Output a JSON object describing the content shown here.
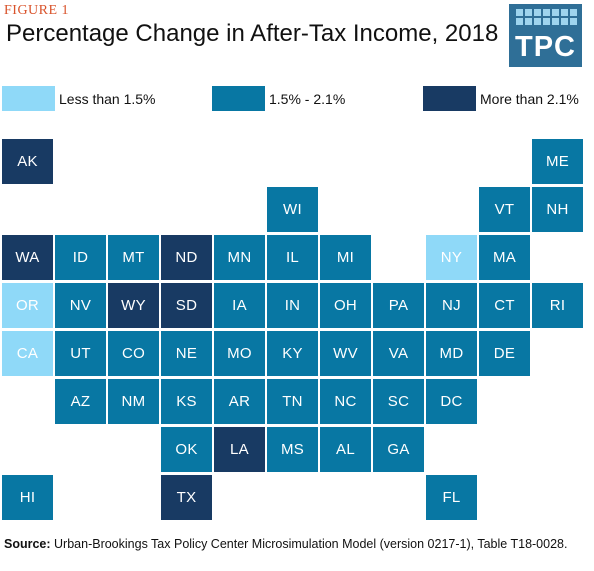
{
  "figure_label": "FIGURE 1",
  "title": "Percentage Change in After-Tax Income, 2018",
  "logo_text": "TPC",
  "colors": {
    "low": "#8fd9f8",
    "mid": "#0877a3",
    "high": "#183a63"
  },
  "legend": [
    {
      "label": "Less than 1.5%",
      "category": "low"
    },
    {
      "label": "1.5% - 2.1%",
      "category": "mid"
    },
    {
      "label": "More than 2.1%",
      "category": "high"
    }
  ],
  "states": [
    {
      "abbr": "AK",
      "category": "high"
    },
    {
      "abbr": "ME",
      "category": "mid"
    },
    {
      "abbr": "WI",
      "category": "mid"
    },
    {
      "abbr": "VT",
      "category": "mid"
    },
    {
      "abbr": "NH",
      "category": "mid"
    },
    {
      "abbr": "WA",
      "category": "high"
    },
    {
      "abbr": "ID",
      "category": "mid"
    },
    {
      "abbr": "MT",
      "category": "mid"
    },
    {
      "abbr": "ND",
      "category": "high"
    },
    {
      "abbr": "MN",
      "category": "mid"
    },
    {
      "abbr": "IL",
      "category": "mid"
    },
    {
      "abbr": "MI",
      "category": "mid"
    },
    {
      "abbr": "NY",
      "category": "low"
    },
    {
      "abbr": "MA",
      "category": "mid"
    },
    {
      "abbr": "OR",
      "category": "low"
    },
    {
      "abbr": "NV",
      "category": "mid"
    },
    {
      "abbr": "WY",
      "category": "high"
    },
    {
      "abbr": "SD",
      "category": "high"
    },
    {
      "abbr": "IA",
      "category": "mid"
    },
    {
      "abbr": "IN",
      "category": "mid"
    },
    {
      "abbr": "OH",
      "category": "mid"
    },
    {
      "abbr": "PA",
      "category": "mid"
    },
    {
      "abbr": "NJ",
      "category": "mid"
    },
    {
      "abbr": "CT",
      "category": "mid"
    },
    {
      "abbr": "RI",
      "category": "mid"
    },
    {
      "abbr": "CA",
      "category": "low"
    },
    {
      "abbr": "UT",
      "category": "mid"
    },
    {
      "abbr": "CO",
      "category": "mid"
    },
    {
      "abbr": "NE",
      "category": "mid"
    },
    {
      "abbr": "MO",
      "category": "mid"
    },
    {
      "abbr": "KY",
      "category": "mid"
    },
    {
      "abbr": "WV",
      "category": "mid"
    },
    {
      "abbr": "VA",
      "category": "mid"
    },
    {
      "abbr": "MD",
      "category": "mid"
    },
    {
      "abbr": "DE",
      "category": "mid"
    },
    {
      "abbr": "AZ",
      "category": "mid"
    },
    {
      "abbr": "NM",
      "category": "mid"
    },
    {
      "abbr": "KS",
      "category": "mid"
    },
    {
      "abbr": "AR",
      "category": "mid"
    },
    {
      "abbr": "TN",
      "category": "mid"
    },
    {
      "abbr": "NC",
      "category": "mid"
    },
    {
      "abbr": "SC",
      "category": "mid"
    },
    {
      "abbr": "DC",
      "category": "mid"
    },
    {
      "abbr": "OK",
      "category": "mid"
    },
    {
      "abbr": "LA",
      "category": "high"
    },
    {
      "abbr": "MS",
      "category": "mid"
    },
    {
      "abbr": "AL",
      "category": "mid"
    },
    {
      "abbr": "GA",
      "category": "mid"
    },
    {
      "abbr": "HI",
      "category": "mid"
    },
    {
      "abbr": "TX",
      "category": "high"
    },
    {
      "abbr": "FL",
      "category": "mid"
    }
  ],
  "source_label": "Source:",
  "source_text": " Urban-Brookings Tax Policy Center Microsimulation Model (version 0217-1), Table T18-0028."
}
